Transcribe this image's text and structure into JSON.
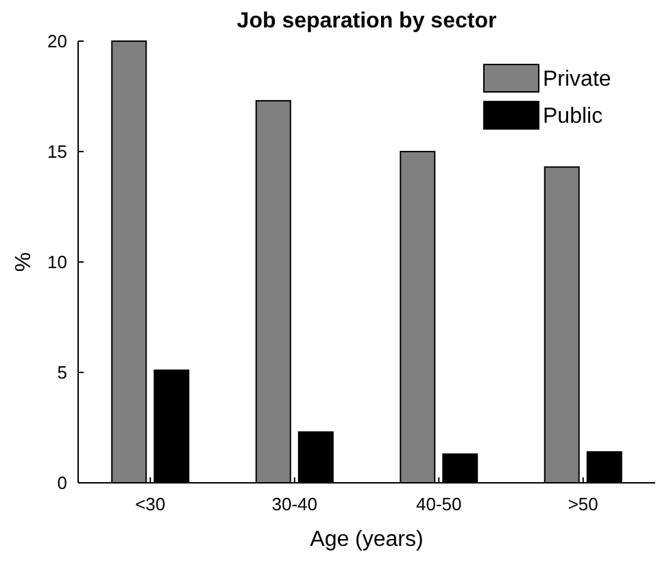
{
  "chart_data": {
    "type": "bar",
    "title": "Job separation by sector",
    "xlabel": "Age (years)",
    "ylabel": "%",
    "categories": [
      "<30",
      "30-40",
      "40-50",
      ">50"
    ],
    "series": [
      {
        "name": "Private",
        "color": "#808080",
        "values": [
          20.0,
          17.3,
          15.0,
          14.3
        ]
      },
      {
        "name": "Public",
        "color": "#000000",
        "values": [
          5.1,
          2.3,
          1.3,
          1.4
        ]
      }
    ],
    "ylim": [
      0,
      20
    ],
    "yticks": [
      0,
      5,
      10,
      15,
      20
    ],
    "grid": false,
    "legend": "top right"
  }
}
